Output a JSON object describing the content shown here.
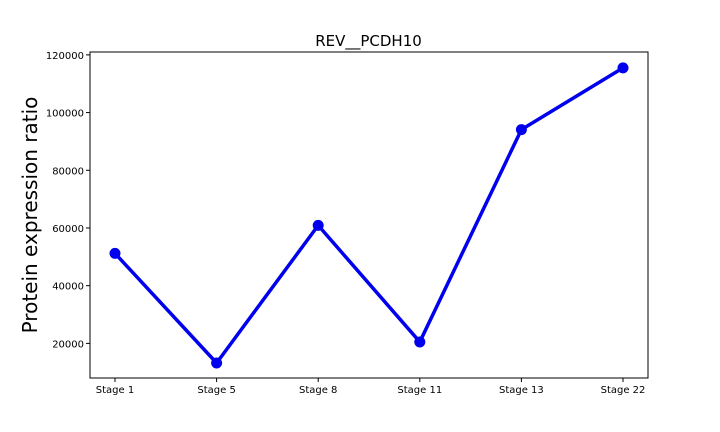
{
  "chart_data": {
    "type": "line",
    "title": "REV__PCDH10",
    "xlabel": "",
    "ylabel": "Protein expression ratio",
    "categories": [
      "Stage 1",
      "Stage 5",
      "Stage 8",
      "Stage 11",
      "Stage 13",
      "Stage 22"
    ],
    "series": [
      {
        "values": [
          51200,
          13200,
          60900,
          20500,
          94100,
          115500
        ]
      }
    ],
    "ylim": [
      8000,
      121000
    ],
    "yticks": [
      20000,
      40000,
      60000,
      80000,
      100000,
      120000
    ],
    "ytick_labels": [
      "20000",
      "40000",
      "60000",
      "80000",
      "100000",
      "120000"
    ],
    "grid": false,
    "legend": "none",
    "line_color": "#0000ee"
  }
}
